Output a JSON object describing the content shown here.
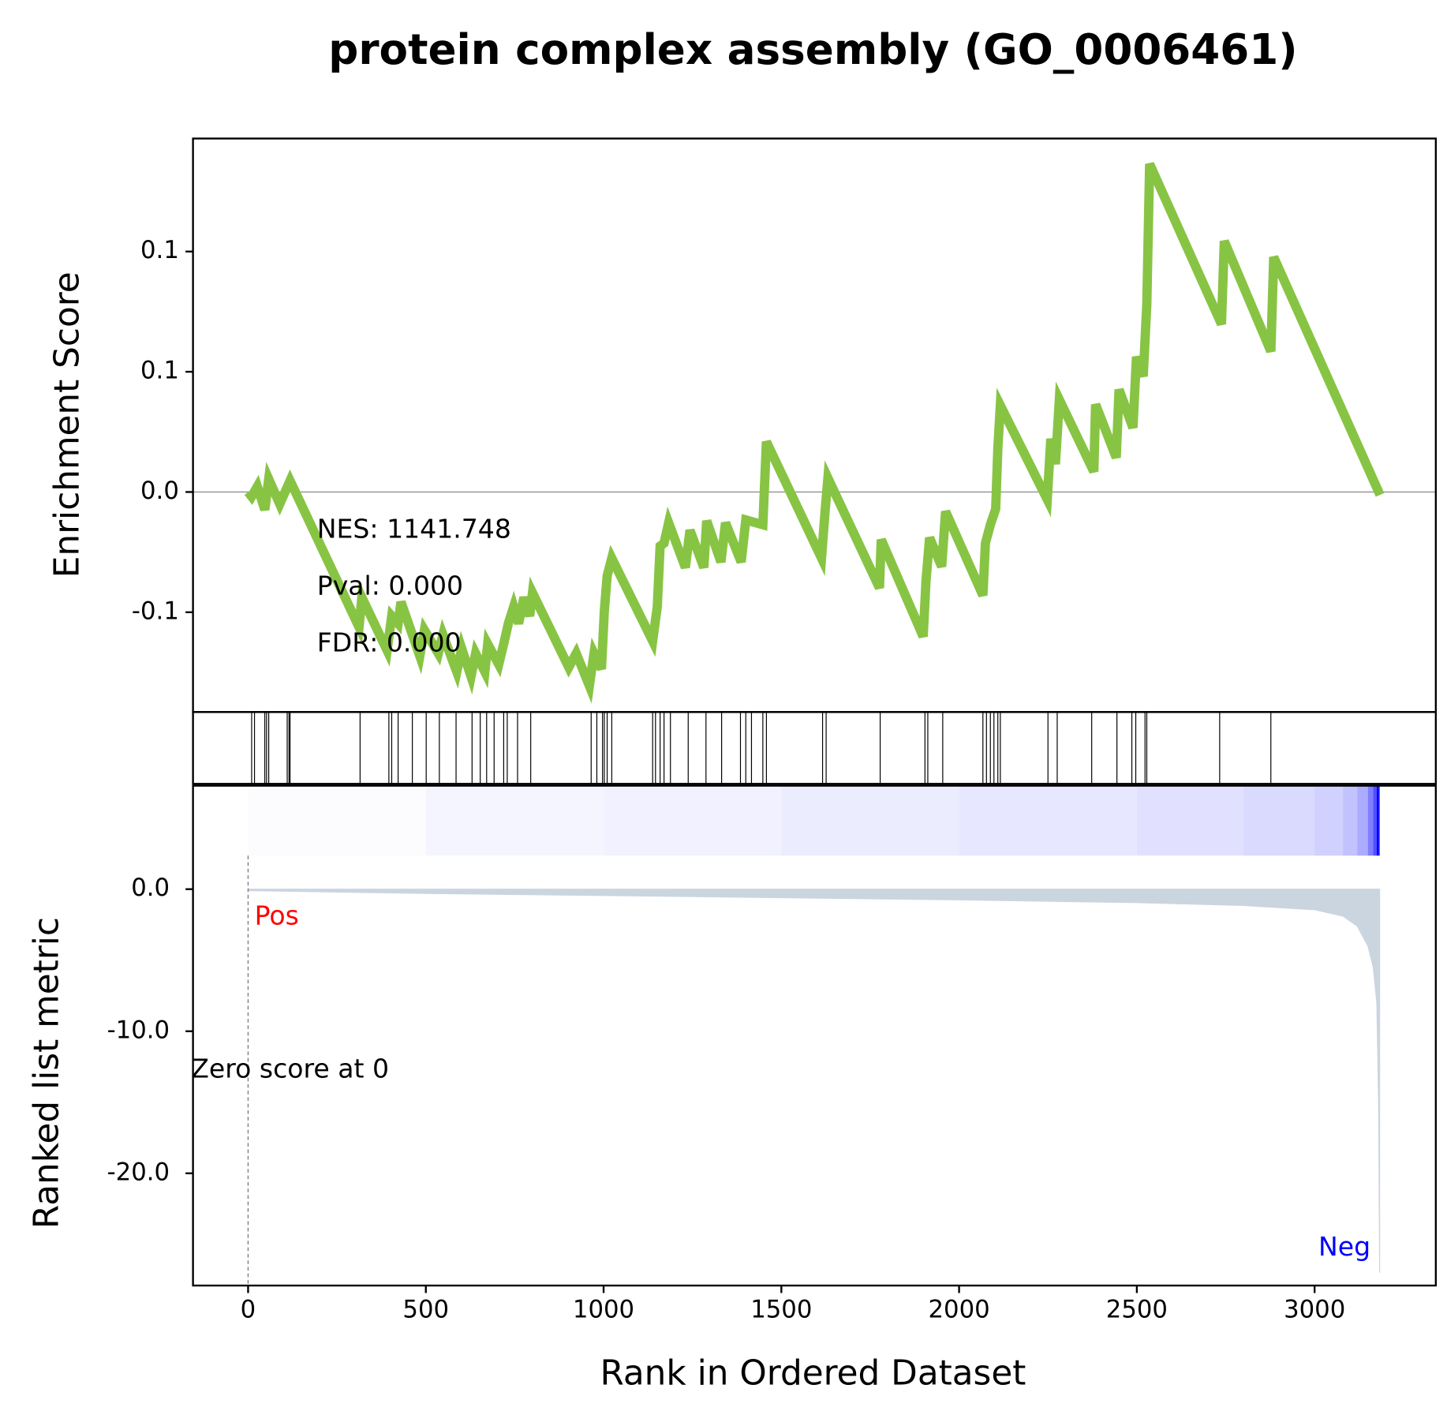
{
  "chart_data": {
    "type": "gsea",
    "title": "protein complex assembly (GO_0006461)",
    "xlabel": "Rank in Ordered Dataset",
    "xlim": [
      -155,
      3341
    ],
    "xticks": [
      0,
      500,
      1000,
      1500,
      2000,
      2500,
      3000
    ],
    "es": {
      "ylabel": "Enrichment Score",
      "color": "#88c444",
      "ylim": [
        -0.0915,
        0.147
      ],
      "yticks": [
        {
          "value": -0.05,
          "label": "-0.1"
        },
        {
          "value": 0,
          "label": "0.0"
        },
        {
          "value": 0.05,
          "label": "0.1"
        },
        {
          "value": 0.1,
          "label": "0.1"
        }
      ],
      "x": [
        0,
        10,
        26,
        47,
        58,
        89,
        118,
        312,
        320,
        391,
        404,
        422,
        430,
        483,
        496,
        535,
        548,
        587,
        601,
        627,
        640,
        666,
        674,
        705,
        719,
        732,
        747,
        761,
        776,
        792,
        800,
        902,
        923,
        960,
        973,
        994,
        1002,
        1010,
        1023,
        1138,
        1151,
        1159,
        1170,
        1183,
        1230,
        1243,
        1282,
        1290,
        1330,
        1343,
        1387,
        1400,
        1448,
        1458,
        1613,
        1623,
        1631,
        1776,
        1781,
        1899,
        1907,
        1917,
        1951,
        1962,
        2067,
        2074,
        2088,
        2103,
        2109,
        2116,
        2248,
        2258,
        2271,
        2282,
        2379,
        2384,
        2442,
        2450,
        2489,
        2499,
        2518,
        2528,
        2536,
        2738,
        2746,
        2877,
        2885,
        3184
      ],
      "values": [
        0,
        -0.0019,
        0.0023,
        -0.0074,
        0.0054,
        -0.005,
        0.0047,
        -0.0562,
        -0.0438,
        -0.0659,
        -0.0516,
        -0.0547,
        -0.0457,
        -0.0682,
        -0.0574,
        -0.0671,
        -0.0593,
        -0.0748,
        -0.0651,
        -0.0767,
        -0.0671,
        -0.0748,
        -0.0632,
        -0.0717,
        -0.0632,
        -0.0547,
        -0.0477,
        -0.0547,
        -0.0438,
        -0.0516,
        -0.0419,
        -0.0729,
        -0.0671,
        -0.0806,
        -0.0671,
        -0.0736,
        -0.0496,
        -0.0349,
        -0.0275,
        -0.062,
        -0.0477,
        -0.0225,
        -0.0213,
        -0.0128,
        -0.0314,
        -0.0159,
        -0.0314,
        -0.012,
        -0.0291,
        -0.0128,
        -0.0291,
        -0.0116,
        -0.0136,
        0.0209,
        -0.0275,
        -0.0081,
        0.0058,
        -0.0399,
        -0.0198,
        -0.0601,
        -0.0368,
        -0.019,
        -0.031,
        -0.0081,
        -0.043,
        -0.0213,
        -0.0136,
        -0.007,
        0.0182,
        0.036,
        -0.0031,
        0.0221,
        0.0116,
        0.0384,
        0.0085,
        0.0364,
        0.0143,
        0.0426,
        0.0267,
        0.0562,
        0.0481,
        0.0779,
        0.1364,
        0.0698,
        0.1043,
        0.0585,
        0.0977,
        -0.0012
      ],
      "annotations": [
        "NES: 1141.748",
        "Pval: 0.000",
        "FDR: 0.000"
      ]
    },
    "hits": {
      "color": "#000000",
      "x": [
        10,
        18,
        47,
        52,
        58,
        110,
        115,
        118,
        315,
        396,
        404,
        422,
        462,
        501,
        538,
        585,
        630,
        653,
        671,
        692,
        719,
        729,
        758,
        795,
        965,
        981,
        997,
        1002,
        1010,
        1023,
        1138,
        1146,
        1159,
        1170,
        1188,
        1238,
        1288,
        1332,
        1385,
        1400,
        1416,
        1448,
        1458,
        1616,
        1626,
        1778,
        1904,
        1912,
        1954,
        2067,
        2077,
        2088,
        2098,
        2109,
        2116,
        2250,
        2276,
        2373,
        2444,
        2486,
        2497,
        2523,
        2528,
        2733,
        2877
      ]
    },
    "metric": {
      "ylabel": "Ranked list metric",
      "color": "#cbd5df",
      "heat_color": "#0000ff",
      "ylim": [
        -27.9,
        2.36
      ],
      "yticks": [
        {
          "value": 0,
          "label": "0.0"
        },
        {
          "value": -10,
          "label": "-10.0"
        },
        {
          "value": -20,
          "label": "-20.0"
        }
      ],
      "x": [
        0,
        500,
        1000,
        1500,
        2000,
        2500,
        2800,
        3000,
        3080,
        3120,
        3150,
        3165,
        3175,
        3180,
        3183
      ],
      "values": [
        -0.1,
        -0.3,
        -0.45,
        -0.6,
        -0.75,
        -0.95,
        -1.15,
        -1.45,
        -1.9,
        -2.6,
        -4,
        -5.5,
        -8,
        -15,
        -27
      ],
      "pos_label": "Pos",
      "neg_label": "Neg",
      "zero_rank": 0,
      "zero_label": "Zero score at 0"
    }
  }
}
